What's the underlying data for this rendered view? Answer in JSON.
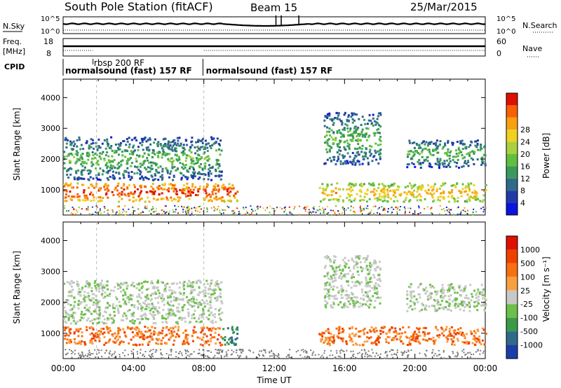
{
  "header": {
    "title": "South Pole Station (fitACF)",
    "beam": "Beam 15",
    "date": "25/Mar/2015"
  },
  "top_panels": {
    "nsky_label": "N.Sky",
    "nsky_ticks": [
      "10^5",
      "10^0"
    ],
    "nsearch_label": "N.Search",
    "nsearch_ticks": [
      "10^5",
      "10^0"
    ],
    "freq_label": "Freq.",
    "freq_unit": "[MHz]",
    "freq_ticks": [
      "18",
      "8"
    ],
    "nave_label": "Nave",
    "nave_ticks": [
      "60",
      "0"
    ],
    "cpid_label": "CPID",
    "cpid_segments": [
      {
        "start": 0,
        "end": 8,
        "label": "normalsound (fast) 157 RF"
      },
      {
        "start": 2,
        "end": 2,
        "label": "rbsp 200 RF"
      },
      {
        "start": 8,
        "end": 24,
        "label": "normalsound (fast) 157 RF"
      }
    ]
  },
  "chart_data": [
    {
      "type": "heatmap",
      "name": "power",
      "xlabel": "",
      "ylabel": "Slant Range [km]",
      "xlim": [
        0,
        24
      ],
      "ylim": [
        180,
        4600
      ],
      "yticks": [
        "1000",
        "2000",
        "3000",
        "4000"
      ],
      "colorbar": {
        "label": "Power [dB]",
        "ticks": [
          "4",
          "8",
          "12",
          "16",
          "20",
          "24",
          "28"
        ],
        "colors": [
          "#0a14e0",
          "#1f3aa8",
          "#2f6a8a",
          "#3a9a5a",
          "#5fc040",
          "#a8d040",
          "#f0d020",
          "#f8a010",
          "#f86000",
          "#e01000"
        ]
      },
      "bands": [
        {
          "t0": 0.0,
          "t1": 9.9,
          "r0": 600,
          "r1": 1200,
          "level": "high"
        },
        {
          "t0": 0.0,
          "t1": 9.0,
          "r0": 1300,
          "r1": 2700,
          "level": "low"
        },
        {
          "t0": 14.5,
          "t1": 24.0,
          "r0": 600,
          "r1": 1200,
          "level": "mid"
        },
        {
          "t0": 14.8,
          "t1": 18.0,
          "r0": 1800,
          "r1": 3500,
          "level": "low"
        },
        {
          "t0": 19.5,
          "t1": 24.0,
          "r0": 1700,
          "r1": 2600,
          "level": "low"
        }
      ]
    },
    {
      "type": "heatmap",
      "name": "velocity",
      "xlabel": "Time UT",
      "ylabel": "Slant Range [km]",
      "xlim": [
        0,
        24
      ],
      "ylim": [
        180,
        4600
      ],
      "xticks": [
        "00:00",
        "04:00",
        "08:00",
        "12:00",
        "16:00",
        "20:00",
        "00:00"
      ],
      "yticks": [
        "1000",
        "2000",
        "3000",
        "4000"
      ],
      "colorbar": {
        "label": "Velocity [m s⁻¹]",
        "ticks": [
          "1000",
          "500",
          "100",
          "25",
          "-25",
          "-100",
          "-500",
          "-1000"
        ],
        "colors": [
          "#1c3ca8",
          "#2f6a8a",
          "#3a9a4a",
          "#6cc04a",
          "#c8c8c8",
          "#f8a040",
          "#f87010",
          "#f04000",
          "#e01000"
        ]
      }
    }
  ]
}
